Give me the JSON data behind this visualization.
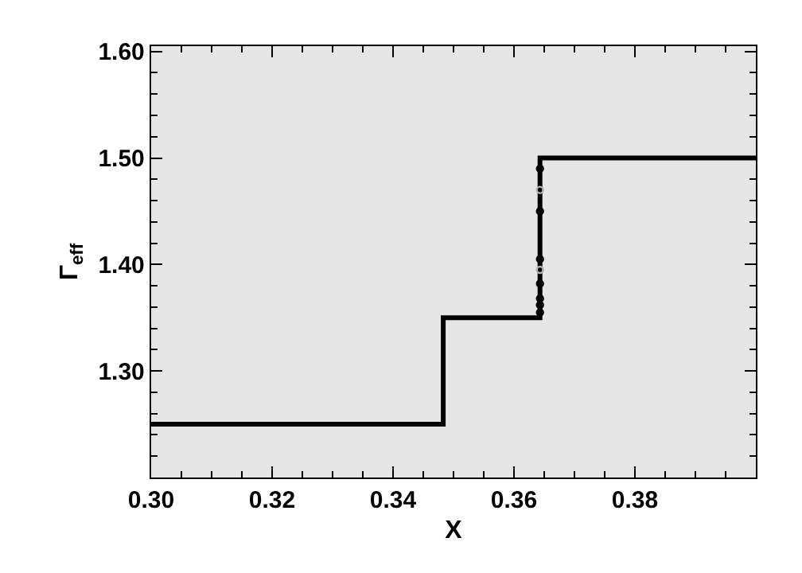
{
  "chart_data": {
    "type": "line",
    "xlabel": "X",
    "ylabel": "Γ$_{eff}$",
    "xlim": [
      0.3,
      0.4
    ],
    "xticks": [
      {
        "value": 0.3,
        "label": "0.30"
      },
      {
        "value": 0.32,
        "label": "0.32"
      },
      {
        "value": 0.34,
        "label": "0.34"
      },
      {
        "value": 0.36,
        "label": "0.36"
      },
      {
        "value": 0.38,
        "label": "0.38"
      }
    ],
    "ylim": [
      1.2,
      1.605
    ],
    "yticks": [
      {
        "value": 1.3,
        "label": "1.30"
      },
      {
        "value": 1.4,
        "label": "1.40"
      },
      {
        "value": 1.5,
        "label": "1.50"
      },
      {
        "value": 1.6,
        "label": "1.60"
      }
    ],
    "grid": false,
    "legend": false,
    "series": [
      {
        "color": "#000000",
        "x": [
          0.3,
          0.3483,
          0.3483,
          0.3643,
          0.3643,
          0.4
        ],
        "values": [
          1.25,
          1.25,
          1.35,
          1.35,
          1.5,
          1.5
        ]
      },
      {
        "type": "scatter",
        "color": "#000000",
        "marker": "circle",
        "x": [
          0.3643,
          0.3643,
          0.3643,
          0.3643,
          0.3643,
          0.3643,
          0.3643
        ],
        "values": [
          1.49,
          1.45,
          1.405,
          1.382,
          1.368,
          1.362,
          1.355
        ]
      },
      {
        "type": "scatter",
        "color": "#b4b4b4",
        "marker": "circle",
        "x": [
          0.3643,
          0.3643
        ],
        "values": [
          1.47,
          1.395
        ]
      }
    ]
  }
}
